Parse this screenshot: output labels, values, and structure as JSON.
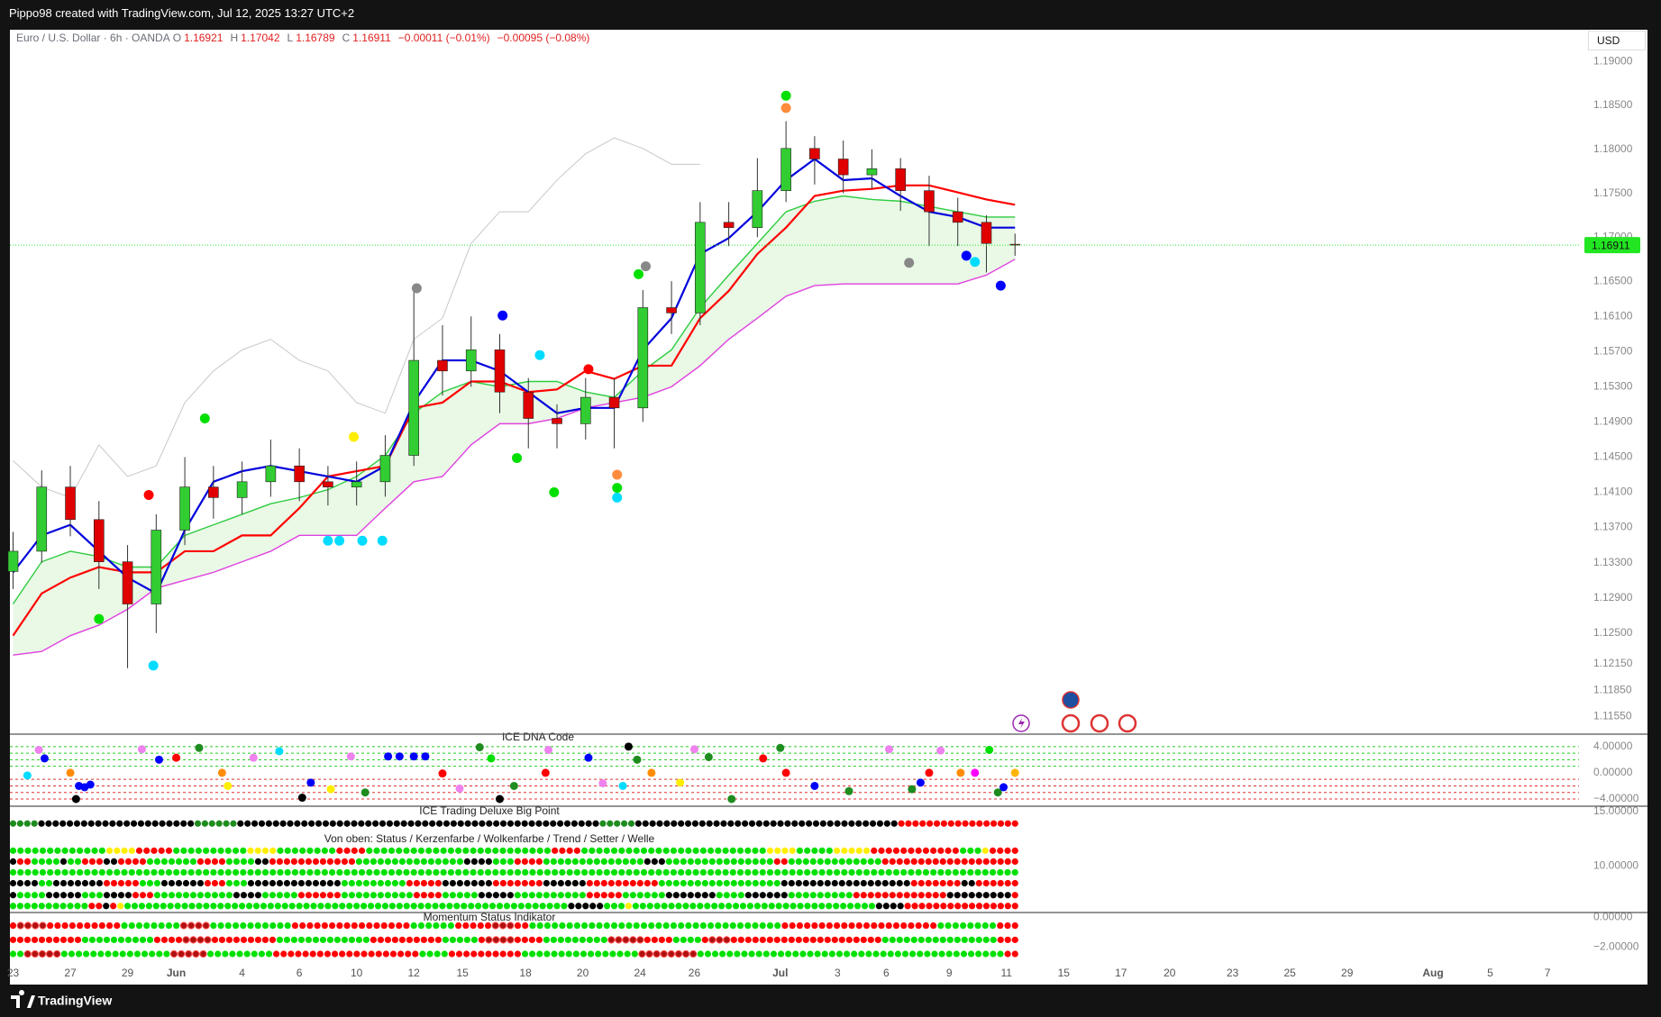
{
  "header": {
    "author_line": "Pippo98 created with TradingView.com, Jul 12, 2025 13:27 UTC+2",
    "footer": "TradingView"
  },
  "chart_data": [
    {
      "type": "candlestick",
      "symbol": "Euro / U.S. Dollar · 6h · OANDA",
      "currency": "USD",
      "legend": [
        {
          "label": "O",
          "value": 1.16921
        },
        {
          "label": "H",
          "value": 1.17042
        },
        {
          "label": "L",
          "value": 1.16789
        },
        {
          "label": "C",
          "value": 1.16911
        }
      ],
      "changes": [
        "−0.00011 (−0.01%)",
        "−0.00095 (−0.08%)"
      ],
      "last_price": 1.16911,
      "last_price_color": "#22e622",
      "up_color": "#32cd32",
      "down_color": "#e00000",
      "x": [
        0,
        1,
        2,
        3,
        4,
        5,
        6,
        7,
        8,
        9,
        10,
        11,
        12,
        13,
        14,
        15,
        16,
        17,
        18,
        19,
        20,
        21,
        22,
        23,
        24,
        25,
        26,
        27,
        28,
        29,
        30,
        31,
        32,
        33,
        34,
        35
      ],
      "open": [
        1.132,
        1.1343,
        1.1416,
        1.1379,
        1.1331,
        1.1283,
        1.1367,
        1.1416,
        1.1404,
        1.1422,
        1.144,
        1.1422,
        1.1416,
        1.1422,
        1.1452,
        1.156,
        1.1548,
        1.1572,
        1.1524,
        1.1494,
        1.1488,
        1.1518,
        1.1506,
        1.162,
        1.1614,
        1.1717,
        1.1711,
        1.1753,
        1.1801,
        1.1789,
        1.1771,
        1.1778,
        1.1753,
        1.1729,
        1.1717,
        1.16921
      ],
      "high": [
        1.1365,
        1.1435,
        1.144,
        1.14,
        1.135,
        1.1385,
        1.145,
        1.144,
        1.1445,
        1.147,
        1.146,
        1.144,
        1.1445,
        1.1475,
        1.164,
        1.16,
        1.161,
        1.159,
        1.154,
        1.151,
        1.154,
        1.154,
        1.164,
        1.165,
        1.174,
        1.174,
        1.179,
        1.1832,
        1.1815,
        1.181,
        1.18,
        1.179,
        1.177,
        1.1745,
        1.1725,
        1.17042
      ],
      "low": [
        1.13,
        1.133,
        1.136,
        1.13,
        1.121,
        1.125,
        1.135,
        1.138,
        1.1385,
        1.1405,
        1.14,
        1.1395,
        1.1395,
        1.1405,
        1.144,
        1.152,
        1.153,
        1.15,
        1.146,
        1.146,
        1.147,
        1.146,
        1.149,
        1.159,
        1.16,
        1.169,
        1.17,
        1.174,
        1.176,
        1.175,
        1.1755,
        1.173,
        1.169,
        1.169,
        1.166,
        1.16789
      ],
      "close": [
        1.1343,
        1.1416,
        1.1379,
        1.1331,
        1.1283,
        1.1367,
        1.1416,
        1.1404,
        1.1422,
        1.144,
        1.1422,
        1.1416,
        1.1422,
        1.1452,
        1.156,
        1.1548,
        1.1572,
        1.1524,
        1.1494,
        1.1488,
        1.1518,
        1.1506,
        1.162,
        1.1614,
        1.1717,
        1.1711,
        1.1753,
        1.1801,
        1.1789,
        1.1771,
        1.1778,
        1.1753,
        1.1729,
        1.1717,
        1.1693,
        1.16911
      ],
      "cloud": {
        "fill": "#e9f9e6",
        "upper_color": "#2ecc40",
        "lower_color": "#e040e0",
        "upper": [
          1.1283,
          1.1331,
          1.1343,
          1.1337,
          1.1325,
          1.1325,
          1.1361,
          1.1373,
          1.1385,
          1.1397,
          1.1404,
          1.1413,
          1.1428,
          1.1452,
          1.15,
          1.1524,
          1.1536,
          1.153,
          1.1536,
          1.1536,
          1.1524,
          1.1518,
          1.1548,
          1.1572,
          1.162,
          1.1657,
          1.1693,
          1.1729,
          1.1741,
          1.1747,
          1.1743,
          1.1741,
          1.1735,
          1.1729,
          1.1723,
          1.1723
        ],
        "lower": [
          1.1225,
          1.1229,
          1.1247,
          1.1259,
          1.1277,
          1.1301,
          1.131,
          1.1319,
          1.1331,
          1.1343,
          1.1361,
          1.1361,
          1.1361,
          1.1392,
          1.1422,
          1.1428,
          1.1464,
          1.1488,
          1.1488,
          1.1494,
          1.1506,
          1.1512,
          1.1518,
          1.153,
          1.1554,
          1.1584,
          1.1608,
          1.1633,
          1.1645,
          1.1647,
          1.1647,
          1.1647,
          1.1647,
          1.1647,
          1.1657,
          1.1675
        ]
      },
      "lines": [
        {
          "color": "#c8c8c8",
          "values": [
            1.1446,
            1.1416,
            1.1404,
            1.1464,
            1.1428,
            1.144,
            1.1512,
            1.1548,
            1.1572,
            1.1584,
            1.156,
            1.1548,
            1.1512,
            1.15,
            1.1584,
            1.1608,
            1.1693,
            1.1729,
            1.1729,
            1.1765,
            1.1795,
            1.1813,
            1.1801,
            1.1783,
            1.1783,
            null,
            null,
            null,
            null,
            null,
            null,
            null,
            null,
            null,
            null,
            null
          ]
        },
        {
          "color": "#ff0000",
          "values": [
            1.1247,
            1.1295,
            1.1313,
            1.1325,
            1.1319,
            1.1319,
            1.1343,
            1.1343,
            1.1361,
            1.1361,
            1.1392,
            1.1428,
            1.1434,
            1.144,
            1.1506,
            1.1512,
            1.1536,
            1.1536,
            1.1524,
            1.1527,
            1.1548,
            1.1539,
            1.1554,
            1.1554,
            1.1608,
            1.1639,
            1.1681,
            1.1711,
            1.1747,
            1.1753,
            1.1755,
            1.1759,
            1.1759,
            1.1751,
            1.1743,
            1.1737
          ]
        },
        {
          "color": "#0000dd",
          "values": [
            1.1319,
            1.1361,
            1.1373,
            1.1343,
            1.1313,
            1.1295,
            1.1367,
            1.1422,
            1.1434,
            1.144,
            1.1434,
            1.1428,
            1.1422,
            1.144,
            1.1512,
            1.156,
            1.156,
            1.1548,
            1.1524,
            1.15,
            1.1506,
            1.1506,
            1.1572,
            1.1608,
            1.1681,
            1.1699,
            1.1729,
            1.1765,
            1.1789,
            1.1765,
            1.1767,
            1.1747,
            1.1729,
            1.1723,
            1.1711,
            1.1711
          ]
        }
      ],
      "markers": {
        "x": [
          27.0,
          27.0,
          20.1,
          21.85,
          22.1,
          17.6,
          18.9,
          21.1,
          21.1,
          21.1,
          4.9,
          4.74,
          3.0,
          6.7,
          14.1,
          17.1,
          34.5,
          31.3,
          18.4,
          11.9,
          11.0,
          11.4,
          12.2,
          12.9,
          33.3,
          33.6
        ],
        "y": [
          1.1861,
          1.1847,
          1.155,
          1.1658,
          1.1667,
          1.1449,
          1.141,
          1.1415,
          1.143,
          1.1404,
          1.1213,
          1.1407,
          1.1266,
          1.1494,
          1.1642,
          1.1611,
          1.1645,
          1.1671,
          1.1566,
          1.1473,
          1.1355,
          1.1355,
          1.1355,
          1.1355,
          1.1679,
          1.1672
        ],
        "colors": [
          "#00e000",
          "#ff8c3c",
          "#ff0000",
          "#00e000",
          "#888888",
          "#00e000",
          "#00e000",
          "#00e000",
          "#ff8c3c",
          "#00dcff",
          "#00dcff",
          "#ff0000",
          "#00e000",
          "#00e000",
          "#888888",
          "#0000ff",
          "#0000ff",
          "#888888",
          "#00dcff",
          "#ffee00",
          "#00dcff",
          "#00dcff",
          "#00dcff",
          "#00dcff",
          "#0000ff",
          "#00dcff"
        ]
      },
      "xlim": [
        -0.11,
        54.7
      ],
      "xticks": [
        {
          "value": 0,
          "label": "23"
        },
        {
          "value": 2,
          "label": "27"
        },
        {
          "value": 4,
          "label": "29"
        },
        {
          "value": 5.7,
          "label": "Jun"
        },
        {
          "value": 8,
          "label": "4"
        },
        {
          "value": 10,
          "label": "6"
        },
        {
          "value": 12,
          "label": "10"
        },
        {
          "value": 14,
          "label": "12"
        },
        {
          "value": 15.7,
          "label": "15"
        },
        {
          "value": 17.9,
          "label": "18"
        },
        {
          "value": 19.9,
          "label": "20"
        },
        {
          "value": 21.9,
          "label": "24"
        },
        {
          "value": 23.8,
          "label": "26"
        },
        {
          "value": 26.8,
          "label": "Jul"
        },
        {
          "value": 28.8,
          "label": "3"
        },
        {
          "value": 30.5,
          "label": "6"
        },
        {
          "value": 32.7,
          "label": "9"
        },
        {
          "value": 34.7,
          "label": "11"
        },
        {
          "value": 36.7,
          "label": "15"
        },
        {
          "value": 38.7,
          "label": "17"
        },
        {
          "value": 40.4,
          "label": "20"
        },
        {
          "value": 42.6,
          "label": "23"
        },
        {
          "value": 44.6,
          "label": "25"
        },
        {
          "value": 46.6,
          "label": "29"
        },
        {
          "value": 49.6,
          "label": "Aug"
        },
        {
          "value": 51.6,
          "label": "5"
        },
        {
          "value": 53.6,
          "label": "7"
        }
      ],
      "ylim": [
        1.1135,
        1.1936
      ],
      "yticks": [
        {
          "value": 1.19,
          "label": "1.19000"
        },
        {
          "value": 1.185,
          "label": "1.18500"
        },
        {
          "value": 1.18,
          "label": "1.18000"
        },
        {
          "value": 1.175,
          "label": "1.17500"
        },
        {
          "value": 1.17,
          "label": "1.17000"
        },
        {
          "value": 1.165,
          "label": "1.16500"
        },
        {
          "value": 1.161,
          "label": "1.16100"
        },
        {
          "value": 1.157,
          "label": "1.15700"
        },
        {
          "value": 1.153,
          "label": "1.15300"
        },
        {
          "value": 1.149,
          "label": "1.14900"
        },
        {
          "value": 1.145,
          "label": "1.14500"
        },
        {
          "value": 1.141,
          "label": "1.14100"
        },
        {
          "value": 1.137,
          "label": "1.13700"
        },
        {
          "value": 1.133,
          "label": "1.13300"
        },
        {
          "value": 1.129,
          "label": "1.12900"
        },
        {
          "value": 1.125,
          "label": "1.12500"
        },
        {
          "value": 1.1215,
          "label": "1.12150"
        },
        {
          "value": 1.1185,
          "label": "1.11850"
        },
        {
          "value": 1.1155,
          "label": "1.11550"
        }
      ]
    },
    {
      "type": "dot-scatter",
      "title": "ICE DNA Code",
      "hlines": [
        4,
        3,
        2,
        1,
        -1,
        -2,
        -3,
        -4
      ],
      "hline_colors": [
        "#22cc22",
        "#22cc22",
        "#22cc22",
        "#22cc22",
        "#e03030",
        "#e03030",
        "#e03030",
        "#e03030"
      ],
      "x": [
        0.5,
        0.9,
        1.1,
        2.0,
        2.3,
        2.5,
        2.7,
        2.2,
        4.5,
        5.1,
        5.7,
        6.5,
        7.3,
        7.5,
        8.4,
        9.3,
        10.1,
        10.4,
        11.1,
        11.8,
        12.3,
        13.1,
        13.5,
        14.0,
        14.4,
        15.0,
        15.6,
        16.3,
        16.7,
        17.0,
        17.5,
        18.6,
        18.7,
        20.1,
        20.6,
        21.3,
        21.5,
        21.8,
        22.3,
        23.3,
        23.8,
        24.3,
        25.1,
        26.2,
        26.8,
        27.0,
        28.0,
        29.2,
        30.6,
        31.4,
        31.7,
        32.0,
        32.4,
        33.1,
        33.6,
        34.1,
        34.4,
        34.6,
        35.0
      ],
      "y": [
        -0.4,
        3.5,
        2.2,
        0.0,
        -2.0,
        -2.2,
        -1.8,
        -4.0,
        3.6,
        2.0,
        2.3,
        3.8,
        0.0,
        -2.0,
        2.3,
        3.3,
        -3.8,
        -1.5,
        -2.5,
        2.5,
        -3.0,
        2.5,
        2.5,
        2.5,
        2.5,
        -0.1,
        -2.4,
        3.9,
        2.2,
        -4.0,
        -2.0,
        0.0,
        3.5,
        2.3,
        -1.6,
        -2.0,
        4.0,
        2.0,
        0.0,
        -1.5,
        3.6,
        2.4,
        -4.0,
        2.2,
        3.8,
        0.0,
        -2.0,
        -2.8,
        3.6,
        -2.5,
        -1.5,
        0.0,
        3.4,
        0.0,
        0.0,
        3.5,
        -3.0,
        -2.2,
        0.0
      ],
      "colors": [
        "#00dcff",
        "#ee82ee",
        "#0000ff",
        "#ff8c00",
        "#0000ff",
        "#0000ff",
        "#0000ff",
        "#000000",
        "#ee82ee",
        "#0000ff",
        "#ff0000",
        "#1e8c1e",
        "#ff8c00",
        "#ffee00",
        "#ee82ee",
        "#00dcff",
        "#000000",
        "#0000ff",
        "#ffee00",
        "#ee82ee",
        "#1e8c1e",
        "#0000ff",
        "#0000ff",
        "#0000ff",
        "#0000ff",
        "#ff0000",
        "#ee82ee",
        "#1e8c1e",
        "#00e000",
        "#000000",
        "#1e8c1e",
        "#ff0000",
        "#ee82ee",
        "#0000ff",
        "#ee82ee",
        "#00dcff",
        "#000000",
        "#1e8c1e",
        "#ff8c00",
        "#ffee00",
        "#ee82ee",
        "#1e8c1e",
        "#1e8c1e",
        "#ff0000",
        "#1e8c1e",
        "#ff0000",
        "#0000ff",
        "#1e8c1e",
        "#ee82ee",
        "#1e8c1e",
        "#0000ff",
        "#ff0000",
        "#ee82ee",
        "#ff8c00",
        "#ff00ff",
        "#00e000",
        "#1e8c1e",
        "#0000ff",
        "#ffb400"
      ],
      "ylim": [
        -5.1,
        5.9
      ],
      "yticks": [
        {
          "value": 4,
          "label": "4.00000"
        },
        {
          "value": 0,
          "label": "0.00000"
        },
        {
          "value": -4,
          "label": "−4.00000"
        }
      ]
    },
    {
      "type": "dot-rows",
      "title": "ICE Trading Deluxe Big Point",
      "subtitle": "Von oben: Status / Kerzenfarbe / Wolkenfarbe / Trend / Setter / Welle",
      "palette": {
        "G": "#00e000",
        "R": "#ff0000",
        "K": "#000000",
        "Y": "#ffee00",
        "D": "#1e8c1e",
        "H": "#b01010"
      },
      "row_levels": [
        13.9,
        11.4,
        10.4,
        9.4,
        8.4,
        7.3,
        6.3
      ],
      "rows": [
        "DDDDKKKKKKKKKKKKKKKKKKKKKKDDDDDDKKKKKKKKKKKKKKKKKKKKKKKKKKKKKKKKKKKKKKKKKKKKKKKKKKKDDDDDKKKKKKKKKKKKKKKKKKKKKKKKKKKKKKKKKKKKKRRRRRRRRRRRRRRRRR",
        "GGGGGGGGGGGGGYYYYRRRRRGGGGGGGGGGYYYYGGGGGGGGRRRRGGGGGGGGGGGGGGGGGGGGGGGGGRRRRGGGGGGGGGGGGGGGGGGGGGGGGGYYYYGGGGGYYYYYRRRRRRRRRRRRGGGYRRRR",
        "KRRGGGGKGGRRRKKRRRRGGGGGGGRRRRGGGGKKRRRRRRRRRRRRGGGGGGGGGGGGGGGKKKKGGGRRRRGGGGGGGGGGGGGGKKKGGGGGGGGGGGGGGGRRGGGGGGGGGGGGGRRRRRRRRRRRRRRRRRRR",
        "GGGGGGGGGGGGGGGGGGGGGGGGGGGGGGGGGGGGGGGGGGGGGGGGGGGGGGGGGGGGGGGGGGGGGGGGGGGGGGGGGGGGGGGGGGGGGGGGGGGGGGGGGGGGGGGGGGGGGGGGGGGGGGGGGGGGGGGG",
        "KKKKGGKKKKKKKRRRRRGGGKKKKKKRRRGGGKKKKKKKKKKKKKGGGGGGGGGRRRRRKKKKKKKRRRRRRRKKKKKKRRRRRRRRRRGGGGGGGGGGGGGGGGGKKKKKKKKKKKKKKKKKKRRRRRRRKKRRRRRR",
        "KGGGGKKKKKGGGKKKKRRRGGGGGGGGGGGKKKKGGGGGRRRRRRGGGGGGGGGGRRRRGGGGGKKKKKGGGGGGGGGGRRRRRGGGGGGKKKKKKKGGGGKKKKKKGGGGGGGGGRRRRRRRRRRRRRKKKKKKKKKR",
        "GGGGGGGGGGGRRKRYGGGGGGGGGGGGGGGGGGGGGGGGGGGGGGGGGGGGGGGGGGGGGGGGGGGGGGGGGGGGGGKKKKKGGGYGGGGGGGGGGGGGGGGGGGGGGGGGGGGGGGGGGKKKKRRRRRRRRRRRRRRRR"
      ],
      "ylim": [
        5.7,
        15.5
      ],
      "yticks": [
        {
          "value": 15,
          "label": "15.00000"
        },
        {
          "value": 10,
          "label": "10.00000"
        }
      ]
    },
    {
      "type": "dot-rows",
      "title": "Momentum Status Indikator",
      "palette": {
        "G": "#00e000",
        "R": "#ff0000",
        "H": "#b01010"
      },
      "row_levels": [
        -0.55,
        -1.52,
        -2.48
      ],
      "rows": [
        "RHHHHRRRRRRRRRRGGGGGGGGHHHHGGGGGGGGGGGRRRRRRRRRRRRRRRRGGGGGGRRRRRHHHRRGGGGGGGGGGGGGGGGGGGGGGGGGGGGGGGGGGRRRRRRRRRRRRRRRRRRRRRGGGGGGGGRRR",
        "RRRRRRRRRRGGGGGGGGGGRRRRHHHHRRRRRRRRRGGGGGGGGGGGGGRRRRRRRRRRGGGGGRHHHHRRRRGGGGGGGGGHHHHHRRRRGGGGRHHHRRRRRRRRRRRRRRRRRRRRRGGGGGGGGGGGGGGGGRRR",
        "GGHHHHHGGGGGGGGGGGGGGGHHHHHGGGGGGGGGRRRRRRRRRRRRRRRRRRRRGGGGRRRRRRRRRRGGGGGGGGGGGGGGGGHHHHHHHHGGGGGGGGGGGGGGGGGGGGGGGGGGGGGGGGGGGGGGGGGGRR"
      ],
      "ylim": [
        -2.97,
        0.34
      ],
      "yticks": [
        {
          "value": 0,
          "label": "0.00000"
        },
        {
          "value": -2,
          "label": "−2.00000"
        }
      ]
    }
  ]
}
